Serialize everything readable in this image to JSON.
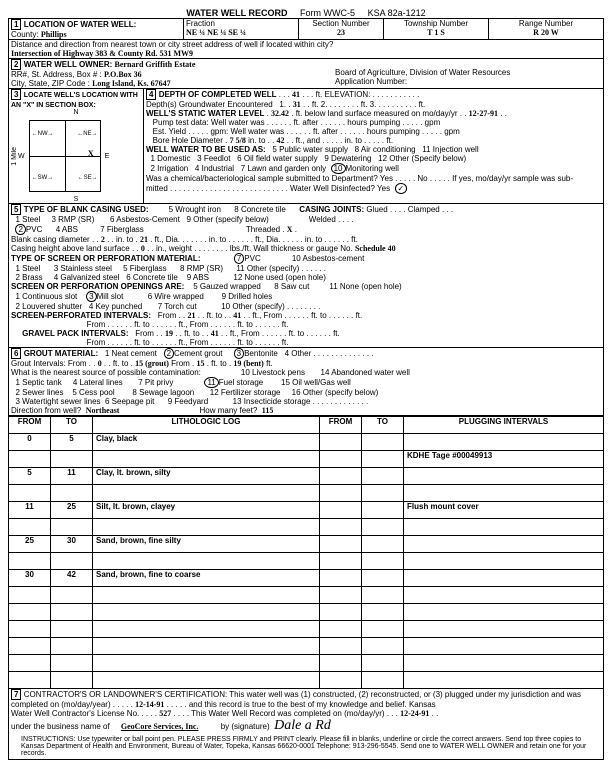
{
  "header": {
    "title": "WATER WELL RECORD",
    "form": "Form WWC-5",
    "ksa": "KSA 82a-1212"
  },
  "loc": {
    "label": "LOCATION OF WATER WELL:",
    "county_lbl": "County:",
    "county": "Phillips",
    "fraction_lbl": "Fraction",
    "fraction": "NE ¼ NE ¼ SE ¼",
    "section_lbl": "Section Number",
    "section": "23",
    "township_lbl": "Township Number",
    "township": "T 1 S",
    "range_lbl": "Range Number",
    "range": "R 20 W",
    "dist_lbl": "Distance and direction from nearest town or city street address of well if located within city?",
    "dist": "Intersection of Highway 383 & County Rd. 531    MW9"
  },
  "owner": {
    "label": "WATER WELL OWNER:",
    "name": "Bernard Griffith Estate",
    "addr_lbl": "RR#, St. Address, Box # :",
    "addr": "P.O.Box 36",
    "city_lbl": "City, State, ZIP Code :",
    "city": "Long Island, Ks. 67647",
    "board": "Board of Agriculture, Division of Water Resources",
    "app_lbl": "Application Number:"
  },
  "sec3": {
    "label": "LOCATE WELL'S LOCATION WITH AN \"X\" IN SECTION BOX:",
    "nw": "NW",
    "ne": "NE",
    "sw": "SW",
    "se": "SE",
    "w": "W",
    "e": "E",
    "n": "N",
    "s": "S",
    "mile": "1 Mile"
  },
  "sec4": {
    "label": "DEPTH OF COMPLETED WELL",
    "depth": "41",
    "elev_lbl": "ft. ELEVATION:",
    "gw_lbl": "Depth(s) Groundwater Encountered",
    "gw1": "31",
    "gw2_lbl": "ft.  2.",
    "gw3_lbl": "ft.  3.",
    "swl_lbl": "WELL'S STATIC WATER LEVEL",
    "swl": "32.42",
    "swl_after": "ft. below land surface measured on mo/day/yr",
    "swl_date": "12-27-91",
    "pump_lbl": "Pump test data:  Well water was",
    "pump_after": "ft. after",
    "pump_hrs": "hours pumping",
    "gpm": "gpm",
    "est_lbl": "Est. Yield",
    "est_gpm": "gpm:  Well water was",
    "bore_lbl": "Bore Hole Diameter",
    "bore1": "7 5/8",
    "bore_into": "in. to",
    "bore2": "42",
    "bore_ft": "ft., and",
    "bore_into2": "in. to",
    "bore_ft2": "ft.",
    "use_lbl": "WELL WATER TO BE USED AS:",
    "u1": "1 Domestic",
    "u2": "2 Irrigation",
    "u3": "3 Feedlot",
    "u4": "4 Industrial",
    "u5": "5 Public water supply",
    "u6": "6 Oil field water supply",
    "u7": "7 Lawn and garden only",
    "u8": "8 Air conditioning",
    "u9": "9 Dewatering",
    "u10": "Monitoring well",
    "u11": "11 Injection well",
    "u12": "12 Other (Specify below)",
    "chem_lbl": "Was a chemical/bacteriological sample submitted to Department? Yes",
    "chem_no": "No",
    "chem_if": "If yes, mo/day/yr sample was sub-",
    "mitted": "mitted",
    "disinf": "Water Well Disinfected? Yes"
  },
  "sec5": {
    "label": "TYPE OF BLANK CASING USED:",
    "c1": "1 Steel",
    "c2": "PVC",
    "c3": "3 RMP (SR)",
    "c4": "4 ABS",
    "c5": "5 Wrought iron",
    "c6": "6 Asbestos-Cement",
    "c7": "7 Fiberglass",
    "c8": "8 Concrete tile",
    "c9": "9 Other (specify below)",
    "joints_lbl": "CASING JOINTS:",
    "j1": "Glued",
    "j2": "Clamped",
    "j3": "Welded",
    "j4": "Threaded",
    "j4v": "X",
    "bcd_lbl": "Blank casing diameter",
    "bcd1": "2",
    "bcd_into": "in. to",
    "bcd2": "21",
    "bcd_ft": "ft., Dia.",
    "cht_lbl": "Casing height above land surface",
    "cht": "0",
    "cht_wt": "in., weight",
    "cht_lbs": "lbs./ft. Wall thickness or gauge No.",
    "cht_sch": "Schedule 40",
    "screen_lbl": "TYPE OF SCREEN OR PERFORATION MATERIAL:",
    "s1": "1 Steel",
    "s2": "2 Brass",
    "s3": "3 Stainless steel",
    "s4": "4 Galvanized steel",
    "s5": "5 Fiberglass",
    "s6": "6 Concrete tile",
    "s7": "PVC",
    "s8": "8 RMP (SR)",
    "s9": "9 ABS",
    "s11": "11 Other (specify)",
    "s12": "12 None used (open hole)",
    "open_lbl": "SCREEN OR PERFORATION OPENINGS ARE:",
    "o1": "1 Continuous slot",
    "o2": "2 Louvered shutter",
    "o3": "Mill slot",
    "o4": "4 Key punched",
    "o5": "5 Gauzed wrapped",
    "o6": "6 Wire wrapped",
    "o7": "7 Torch cut",
    "o8": "8 Saw cut",
    "o9": "9 Drilled holes",
    "o10": "10 Other (specify)",
    "o11": "11 None (open hole)",
    "spi_lbl": "SCREEN-PERFORATED INTERVALS:",
    "spi_f1": "21",
    "spi_t1": "41",
    "gpk_lbl": "GRAVEL PACK INTERVALS:",
    "gpk_f1": "19",
    "gpk_t1": "41",
    "from": "From",
    "to": "ft. to",
    "ft": "ft., From",
    "ftto": "ft. to",
    "ftend": "ft."
  },
  "sec6": {
    "label": "GROUT MATERIAL:",
    "g1": "1 Neat cement",
    "g2": "Cement grout",
    "g3": "Bentonite",
    "g4": "4 Other",
    "gi_lbl": "Grout Intervals:   From",
    "gi_f": "0",
    "gi_to": "ft. to",
    "gi_t": "15 (grout)",
    "gi_f2l": "From",
    "gi_f2": "15",
    "gi_t2": "19 (bent)",
    "src_lbl": "What is the nearest source of possible contamination:",
    "p1": "1 Septic tank",
    "p2": "2 Sewer lines",
    "p3": "3 Watertight sewer lines",
    "p4": "4 Lateral lines",
    "p5": "5 Cess pool",
    "p6": "6 Seepage pit",
    "p7": "7 Pit privy",
    "p8": "8 Sewage lagoon",
    "p9": "9 Feedyard",
    "p10": "10 Livestock pens",
    "p11": "Fuel storage",
    "p12": "12 Fertilizer storage",
    "p13": "13 Insecticide storage",
    "p14": "14 Abandoned water well",
    "p15": "15 Oil well/Gas well",
    "p16": "16 Other (specify below)",
    "dir_lbl": "Direction from well?",
    "dir": "Northeast",
    "hm_lbl": "How many feet?",
    "hm": "115"
  },
  "log": {
    "h_from": "FROM",
    "h_to": "TO",
    "h_lith": "LITHOLOGIC LOG",
    "h_plug": "PLUGGING INTERVALS",
    "rows": [
      {
        "f": "0",
        "t": "5",
        "l": "Clay, black",
        "p": ""
      },
      {
        "f": "",
        "t": "",
        "l": "",
        "p": "KDHE Tage #00049913"
      },
      {
        "f": "5",
        "t": "11",
        "l": "Clay, lt. brown, silty",
        "p": ""
      },
      {
        "f": "",
        "t": "",
        "l": "",
        "p": ""
      },
      {
        "f": "11",
        "t": "25",
        "l": "Silt, lt. brown, clayey",
        "p": "Flush mount cover"
      },
      {
        "f": "",
        "t": "",
        "l": "",
        "p": ""
      },
      {
        "f": "25",
        "t": "30",
        "l": "Sand, brown, fine silty",
        "p": ""
      },
      {
        "f": "",
        "t": "",
        "l": "",
        "p": ""
      },
      {
        "f": "30",
        "t": "42",
        "l": "Sand, brown, fine to coarse",
        "p": ""
      },
      {
        "f": "",
        "t": "",
        "l": "",
        "p": ""
      },
      {
        "f": "",
        "t": "",
        "l": "",
        "p": ""
      },
      {
        "f": "",
        "t": "",
        "l": "",
        "p": ""
      },
      {
        "f": "",
        "t": "",
        "l": "",
        "p": ""
      },
      {
        "f": "",
        "t": "",
        "l": "",
        "p": ""
      },
      {
        "f": "",
        "t": "",
        "l": "",
        "p": ""
      }
    ]
  },
  "cert": {
    "label": "CONTRACTOR'S OR LANDOWNER'S CERTIFICATION: This water well was (1) constructed, (2) reconstructed, or (3) plugged under my jurisdiction and was",
    "l2a": "completed on (mo/day/year)",
    "l2d": "12-14-91",
    "l2b": "and this record is true to the best of my knowledge and belief. Kansas",
    "l3a": "Water Well Contractor's License No.",
    "l3n": "527",
    "l3b": "This Water Well Record was completed on (mo/day/yr)",
    "l3d": "12-24-91",
    "l4a": "under the business name of",
    "l4n": "GeoCore Services, Inc.",
    "l4b": "by (signature)",
    "l4s": "Dale a Rd",
    "instr": "INSTRUCTIONS: Use typewriter or ball point pen. PLEASE PRESS FIRMLY and PRINT clearly. Please fill in blanks, underline or circle the correct answers. Send top three copies to Kansas Department of Health and Environment, Bureau of Water, Topeka, Kansas 66620-0001  Telephone: 913-296-5545. Send one to WATER WELL OWNER and retain one for your records."
  }
}
